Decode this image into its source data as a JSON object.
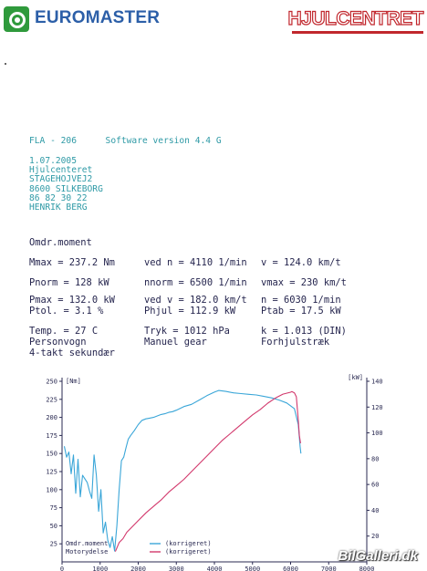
{
  "header": {
    "left_logo_text": "EUROMASTER",
    "right_logo_text": "HJULCENTRET",
    "left_logo_color": "#2c5fa8",
    "left_emblem_color": "#2f9a3c",
    "right_logo_color": "#c1272d"
  },
  "document": {
    "model": "FLA - 206",
    "software": "Software version  4.4 G",
    "address_lines": [
      "1.07.2005",
      "Hjulcenteret",
      "STAGEHOJVEJ2",
      "8600 SILKEBORG",
      "86 82 30 22",
      "HENRIK BERG"
    ]
  },
  "measurement": {
    "section_title": "Omdr.moment",
    "rows": [
      [
        "Mmax   =  237.2 Nm",
        "ved n =  4110 1/min",
        "v  =  124.0 km/t"
      ],
      [
        "Pnorm  =    128 kW",
        "nnorm =  6500 1/min",
        "vmax =   230 km/t"
      ],
      [
        "Pmax   =  132.0 kW",
        "ved v =  182.0 km/t",
        "n  =  6030 1/min"
      ],
      [
        "Ptol.  =    3.1 %",
        "Phjul =  112.9 kW",
        "Ptab =  17.5 kW"
      ],
      [
        "Temp.  =    27  C",
        "Tryk  =  1012  hPa",
        "k  =  1.013 (DIN)"
      ],
      [
        "Personvogn",
        "Manuel gear",
        "Forhjulstræk"
      ],
      [
        "4-takt sekundær",
        "",
        ""
      ]
    ]
  },
  "chart_data": {
    "type": "line",
    "x_ticks": [
      "0",
      "1000",
      "2000",
      "3000",
      "4000",
      "5000",
      "6000",
      "7000",
      "8000"
    ],
    "left_axis_unit": "[Nm]",
    "right_axis_unit": "[kW]",
    "left_ticks": [
      "25",
      "50",
      "75",
      "100",
      "125",
      "150",
      "175",
      "200",
      "225",
      "250"
    ],
    "right_ticks": [
      "20",
      "40",
      "60",
      "80",
      "100",
      "120",
      "140"
    ],
    "xlim": [
      0,
      8000
    ],
    "ylim_left": [
      0,
      250
    ],
    "ylim_right": [
      0,
      140
    ],
    "grid": false,
    "legend_position": "bottom-left",
    "series": [
      {
        "name": "Omdr.moment",
        "legend_note": "(korrigeret)",
        "axis": "left",
        "color": "#3aa6d8",
        "x": [
          60,
          120,
          180,
          240,
          300,
          360,
          420,
          480,
          540,
          600,
          660,
          720,
          780,
          840,
          900,
          960,
          1020,
          1080,
          1140,
          1200,
          1260,
          1320,
          1380,
          1440,
          1500,
          1560,
          1620,
          1680,
          1740,
          1800,
          1900,
          2000,
          2100,
          2200,
          2300,
          2400,
          2500,
          2600,
          2700,
          2800,
          2900,
          3000,
          3200,
          3400,
          3600,
          3800,
          4000,
          4110,
          4300,
          4500,
          4700,
          4900,
          5100,
          5300,
          5500,
          5700,
          5900,
          6100,
          6200,
          6250,
          6270
        ],
        "values": [
          160,
          145,
          152,
          122,
          148,
          95,
          142,
          90,
          120,
          115,
          110,
          98,
          88,
          148,
          120,
          70,
          100,
          40,
          55,
          30,
          20,
          35,
          15,
          50,
          100,
          140,
          145,
          158,
          170,
          175,
          182,
          190,
          196,
          198,
          199,
          200,
          202,
          204,
          205,
          207,
          208,
          210,
          215,
          218,
          224,
          230,
          235,
          237.2,
          236,
          234,
          233,
          232,
          231,
          229,
          227,
          224,
          220,
          212,
          190,
          160,
          150
        ]
      },
      {
        "name": "Motorydelse",
        "legend_note": "(korrigeret)",
        "axis": "right",
        "color": "#d2386c",
        "x": [
          1400,
          1500,
          1600,
          1700,
          1800,
          2000,
          2200,
          2400,
          2600,
          2800,
          3000,
          3200,
          3400,
          3600,
          3800,
          4000,
          4200,
          4400,
          4600,
          4800,
          5000,
          5200,
          5400,
          5600,
          5800,
          6000,
          6030,
          6100,
          6150,
          6200,
          6230,
          6260
        ],
        "values": [
          8,
          15,
          18,
          23,
          26,
          32,
          38,
          43,
          48,
          54,
          59,
          64,
          70,
          76,
          82,
          88,
          94,
          99,
          104,
          109,
          114,
          118,
          123,
          127,
          130,
          131.5,
          132,
          131,
          128,
          110,
          98,
          92
        ]
      }
    ]
  },
  "watermark": "BilGalleri.dk"
}
